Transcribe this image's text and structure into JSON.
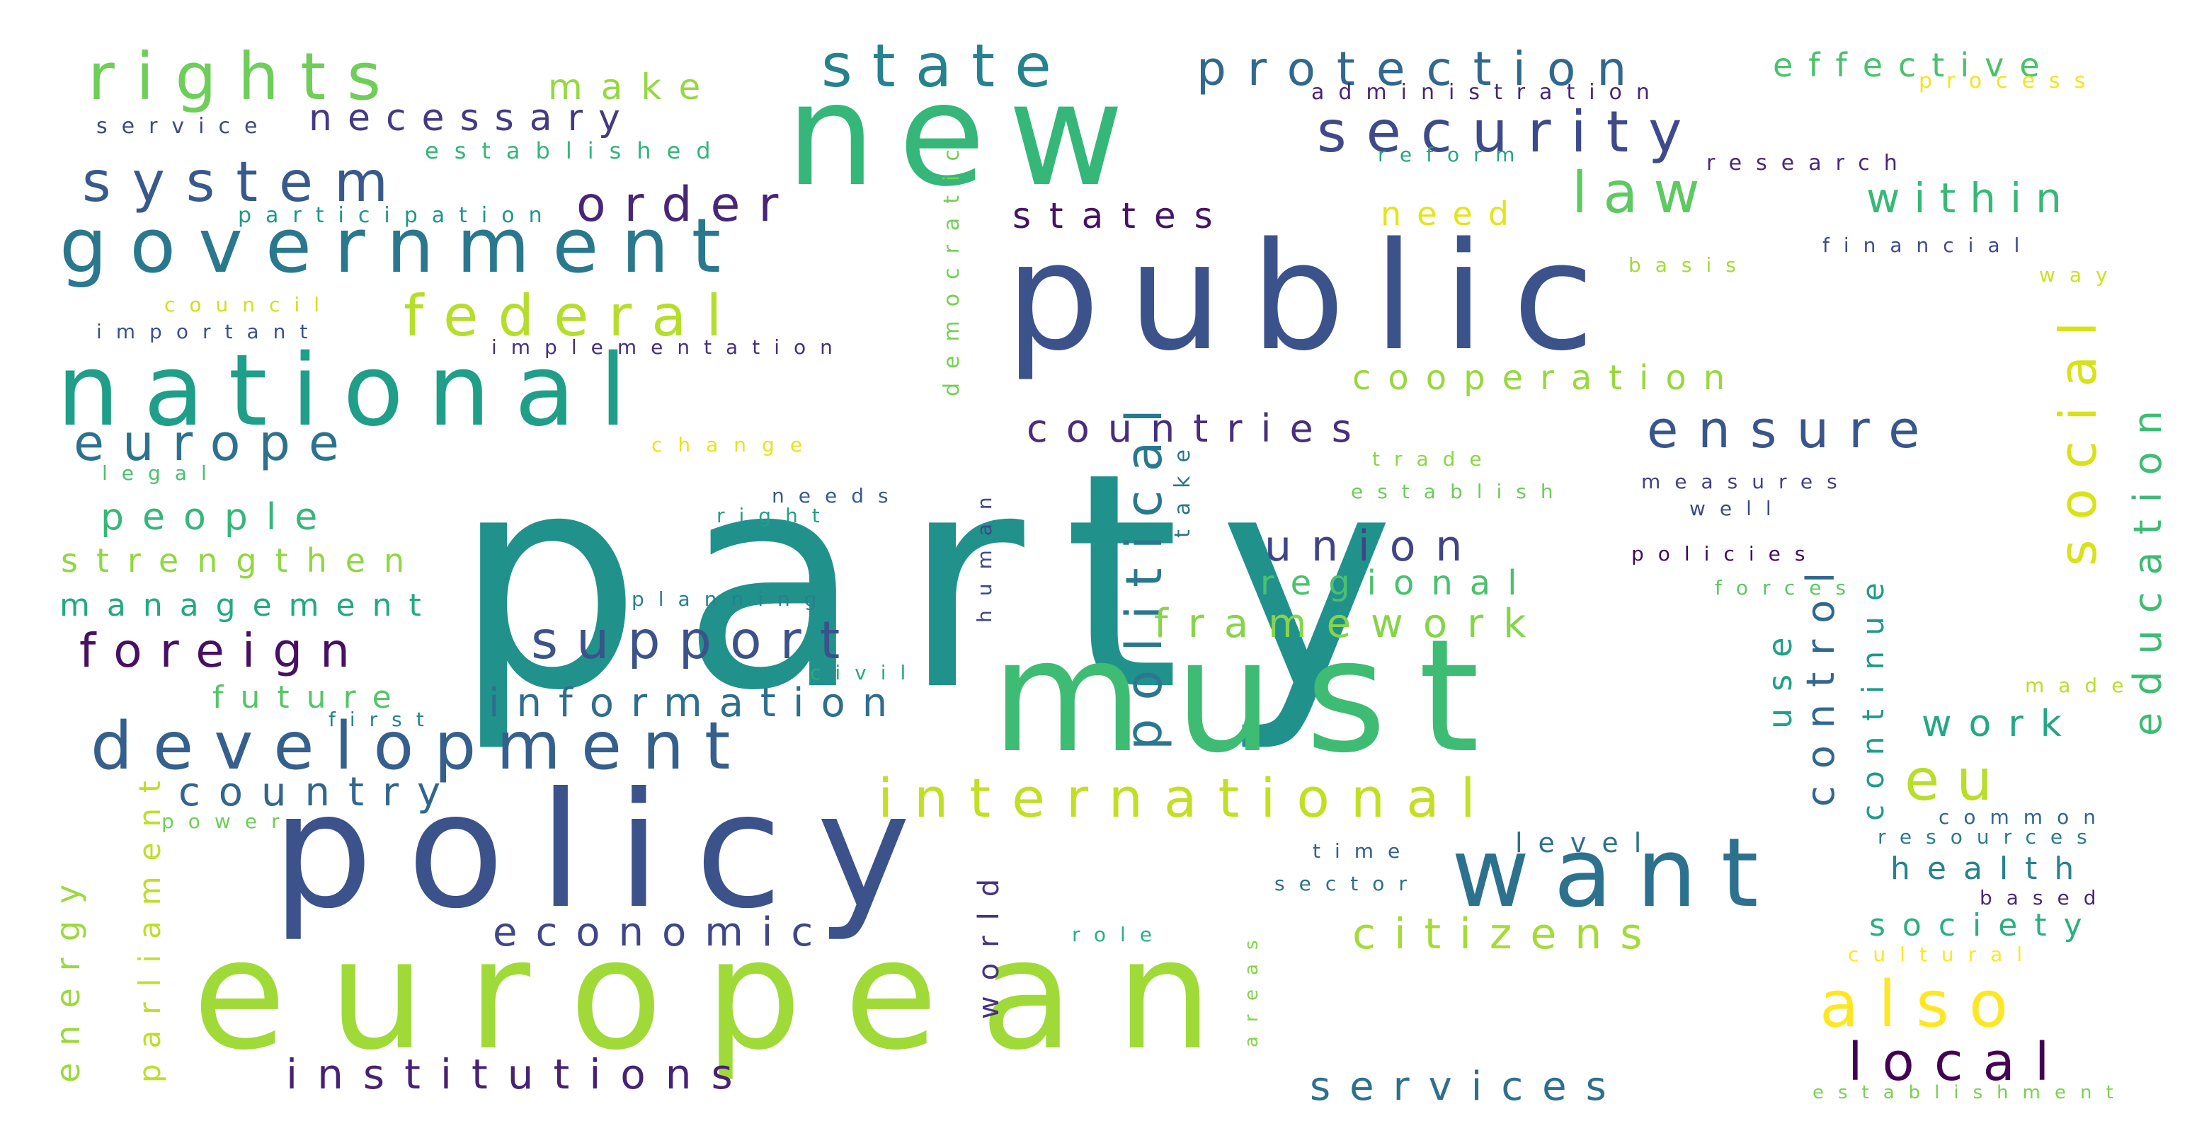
{
  "words": [
    {
      "text": "party",
      "color": "#21918c"
    },
    {
      "text": "european",
      "color": "#a0da39"
    },
    {
      "text": "policy",
      "color": "#3b528b"
    },
    {
      "text": "must",
      "color": "#3fbc73"
    },
    {
      "text": "public",
      "color": "#3b528b"
    },
    {
      "text": "new",
      "color": "#35b779"
    },
    {
      "text": "national",
      "color": "#1f9e89"
    },
    {
      "text": "government",
      "color": "#2a788e"
    },
    {
      "text": "want",
      "color": "#2c728e"
    },
    {
      "text": "international",
      "color": "#c2df23"
    },
    {
      "text": "development",
      "color": "#355f8d"
    },
    {
      "text": "security",
      "color": "#3e4a89"
    },
    {
      "text": "system",
      "color": "#38598c"
    },
    {
      "text": "rights",
      "color": "#6ece58"
    },
    {
      "text": "state",
      "color": "#26828e"
    },
    {
      "text": "protection",
      "color": "#31688e"
    },
    {
      "text": "social",
      "color": "#d8e219"
    },
    {
      "text": "political",
      "color": "#2a788e"
    },
    {
      "text": "ensure",
      "color": "#39568c"
    },
    {
      "text": "law",
      "color": "#5ec962"
    },
    {
      "text": "within",
      "color": "#37b878"
    },
    {
      "text": "europe",
      "color": "#2c728e"
    },
    {
      "text": "federal",
      "color": "#b5de2b"
    },
    {
      "text": "support",
      "color": "#3b528b"
    },
    {
      "text": "also",
      "color": "#fde725"
    },
    {
      "text": "local",
      "color": "#440154"
    },
    {
      "text": "eu",
      "color": "#b8de29"
    },
    {
      "text": "order",
      "color": "#482576"
    },
    {
      "text": "foreign",
      "color": "#471063"
    },
    {
      "text": "countries",
      "color": "#472f7d"
    },
    {
      "text": "control",
      "color": "#31688e"
    },
    {
      "text": "union",
      "color": "#414487"
    },
    {
      "text": "framework",
      "color": "#86d549"
    },
    {
      "text": "information",
      "color": "#2e6e8e"
    },
    {
      "text": "citizens",
      "color": "#a5db36"
    },
    {
      "text": "economic",
      "color": "#3f4788"
    },
    {
      "text": "institutions",
      "color": "#482173"
    },
    {
      "text": "services",
      "color": "#2e6f8e"
    },
    {
      "text": "education",
      "color": "#3dbc74"
    },
    {
      "text": "cooperation",
      "color": "#98d83e"
    },
    {
      "text": "regional",
      "color": "#4ac16d"
    },
    {
      "text": "country",
      "color": "#31668e"
    },
    {
      "text": "people",
      "color": "#35b779"
    },
    {
      "text": "strengthen",
      "color": "#90d743"
    },
    {
      "text": "management",
      "color": "#23a983"
    },
    {
      "text": "future",
      "color": "#54c568"
    },
    {
      "text": "work",
      "color": "#22a884"
    },
    {
      "text": "health",
      "color": "#26828e"
    },
    {
      "text": "society",
      "color": "#2ab07f"
    },
    {
      "text": "use",
      "color": "#1fa187"
    },
    {
      "text": "continue",
      "color": "#1e9b8a"
    },
    {
      "text": "necessary",
      "color": "#443a83"
    },
    {
      "text": "make",
      "color": "#95d840"
    },
    {
      "text": "states",
      "color": "#471365"
    },
    {
      "text": "need",
      "color": "#e5e419"
    },
    {
      "text": "effective",
      "color": "#4ac16d"
    },
    {
      "text": "energy",
      "color": "#9bd93c"
    },
    {
      "text": "parliament",
      "color": "#bddf26"
    },
    {
      "text": "world",
      "color": "#46337f"
    },
    {
      "text": "level",
      "color": "#2d718e"
    },
    {
      "text": "administration",
      "color": "#482677"
    },
    {
      "text": "process",
      "color": "#f1e51d"
    },
    {
      "text": "service",
      "color": "#3f4889"
    },
    {
      "text": "established",
      "color": "#32b67a"
    },
    {
      "text": "democratic",
      "color": "#73d056"
    },
    {
      "text": "reform",
      "color": "#21a685"
    },
    {
      "text": "research",
      "color": "#482878"
    },
    {
      "text": "participation",
      "color": "#1f968b"
    },
    {
      "text": "financial",
      "color": "#3e4c8a"
    },
    {
      "text": "basis",
      "color": "#a2da37"
    },
    {
      "text": "way",
      "color": "#cae11f"
    },
    {
      "text": "council",
      "color": "#d0e11c"
    },
    {
      "text": "important",
      "color": "#3b528b"
    },
    {
      "text": "implementation",
      "color": "#46307e"
    },
    {
      "text": "legal",
      "color": "#48c16e"
    },
    {
      "text": "change",
      "color": "#e7e419"
    },
    {
      "text": "trade",
      "color": "#8bd646"
    },
    {
      "text": "establish",
      "color": "#6ccd5a"
    },
    {
      "text": "measures",
      "color": "#424086"
    },
    {
      "text": "well",
      "color": "#3e4989"
    },
    {
      "text": "take",
      "color": "#2b748e"
    },
    {
      "text": "needs",
      "color": "#365c8d"
    },
    {
      "text": "right",
      "color": "#1fa088"
    },
    {
      "text": "human",
      "color": "#3f4788"
    },
    {
      "text": "policies",
      "color": "#46085c"
    },
    {
      "text": "forces",
      "color": "#5cc863"
    },
    {
      "text": "planning",
      "color": "#26828e"
    },
    {
      "text": "civil",
      "color": "#25ab82"
    },
    {
      "text": "first",
      "color": "#25838e"
    },
    {
      "text": "power",
      "color": "#6ece58"
    },
    {
      "text": "made",
      "color": "#bade28"
    },
    {
      "text": "common",
      "color": "#33638d"
    },
    {
      "text": "resources",
      "color": "#297b8e"
    },
    {
      "text": "time",
      "color": "#33628d"
    },
    {
      "text": "sector",
      "color": "#2d708e"
    },
    {
      "text": "role",
      "color": "#29af7f"
    },
    {
      "text": "areas",
      "color": "#84d44b"
    },
    {
      "text": "based",
      "color": "#482979"
    },
    {
      "text": "cultural",
      "color": "#fde725"
    },
    {
      "text": "establishment",
      "color": "#7ad151"
    }
  ]
}
